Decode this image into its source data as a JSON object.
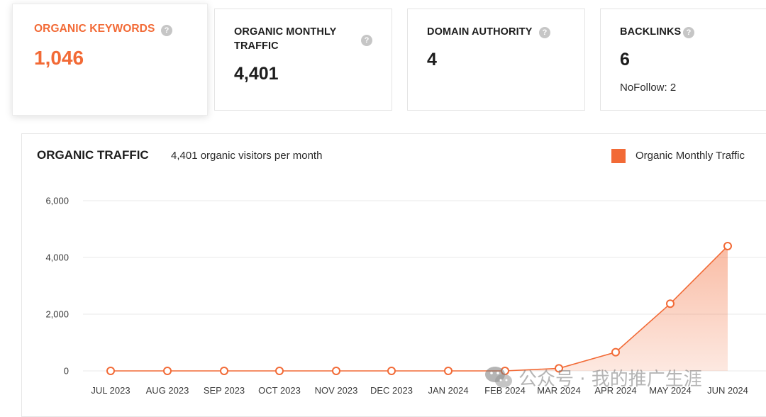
{
  "metrics": [
    {
      "title": "ORGANIC KEYWORDS",
      "value": "1,046",
      "help": "?"
    },
    {
      "title_line1": "ORGANIC MONTHLY",
      "title_line2": "TRAFFIC",
      "value": "4,401",
      "help": "?"
    },
    {
      "title": "DOMAIN AUTHORITY",
      "value": "4",
      "help": "?"
    },
    {
      "title": "BACKLINKS",
      "value": "6",
      "sub": "NoFollow: 2",
      "help": "?"
    }
  ],
  "panel": {
    "title": "ORGANIC TRAFFIC",
    "subtitle": "4,401 organic visitors per month",
    "legend": "Organic Monthly Traffic"
  },
  "colors": {
    "accent": "#f26a36",
    "area": "#fbd6c6"
  },
  "chart_data": {
    "type": "area",
    "title": "ORGANIC TRAFFIC",
    "categories": [
      "JUL 2023",
      "AUG 2023",
      "SEP 2023",
      "OCT 2023",
      "NOV 2023",
      "DEC 2023",
      "JAN 2024",
      "FEB 2024",
      "MAR 2024",
      "APR 2024",
      "MAY 2024",
      "JUN 2024"
    ],
    "series": [
      {
        "name": "Organic Monthly Traffic",
        "values": [
          0,
          0,
          0,
          0,
          0,
          0,
          0,
          0,
          90,
          660,
          2370,
          4401
        ]
      }
    ],
    "yticks": [
      0,
      2000,
      4000,
      6000
    ],
    "ytick_labels": [
      "0",
      "2,000",
      "4,000",
      "6,000"
    ],
    "ylim": [
      0,
      6000
    ],
    "grid": true
  },
  "watermark": "公众号 · 我的推广生涯"
}
